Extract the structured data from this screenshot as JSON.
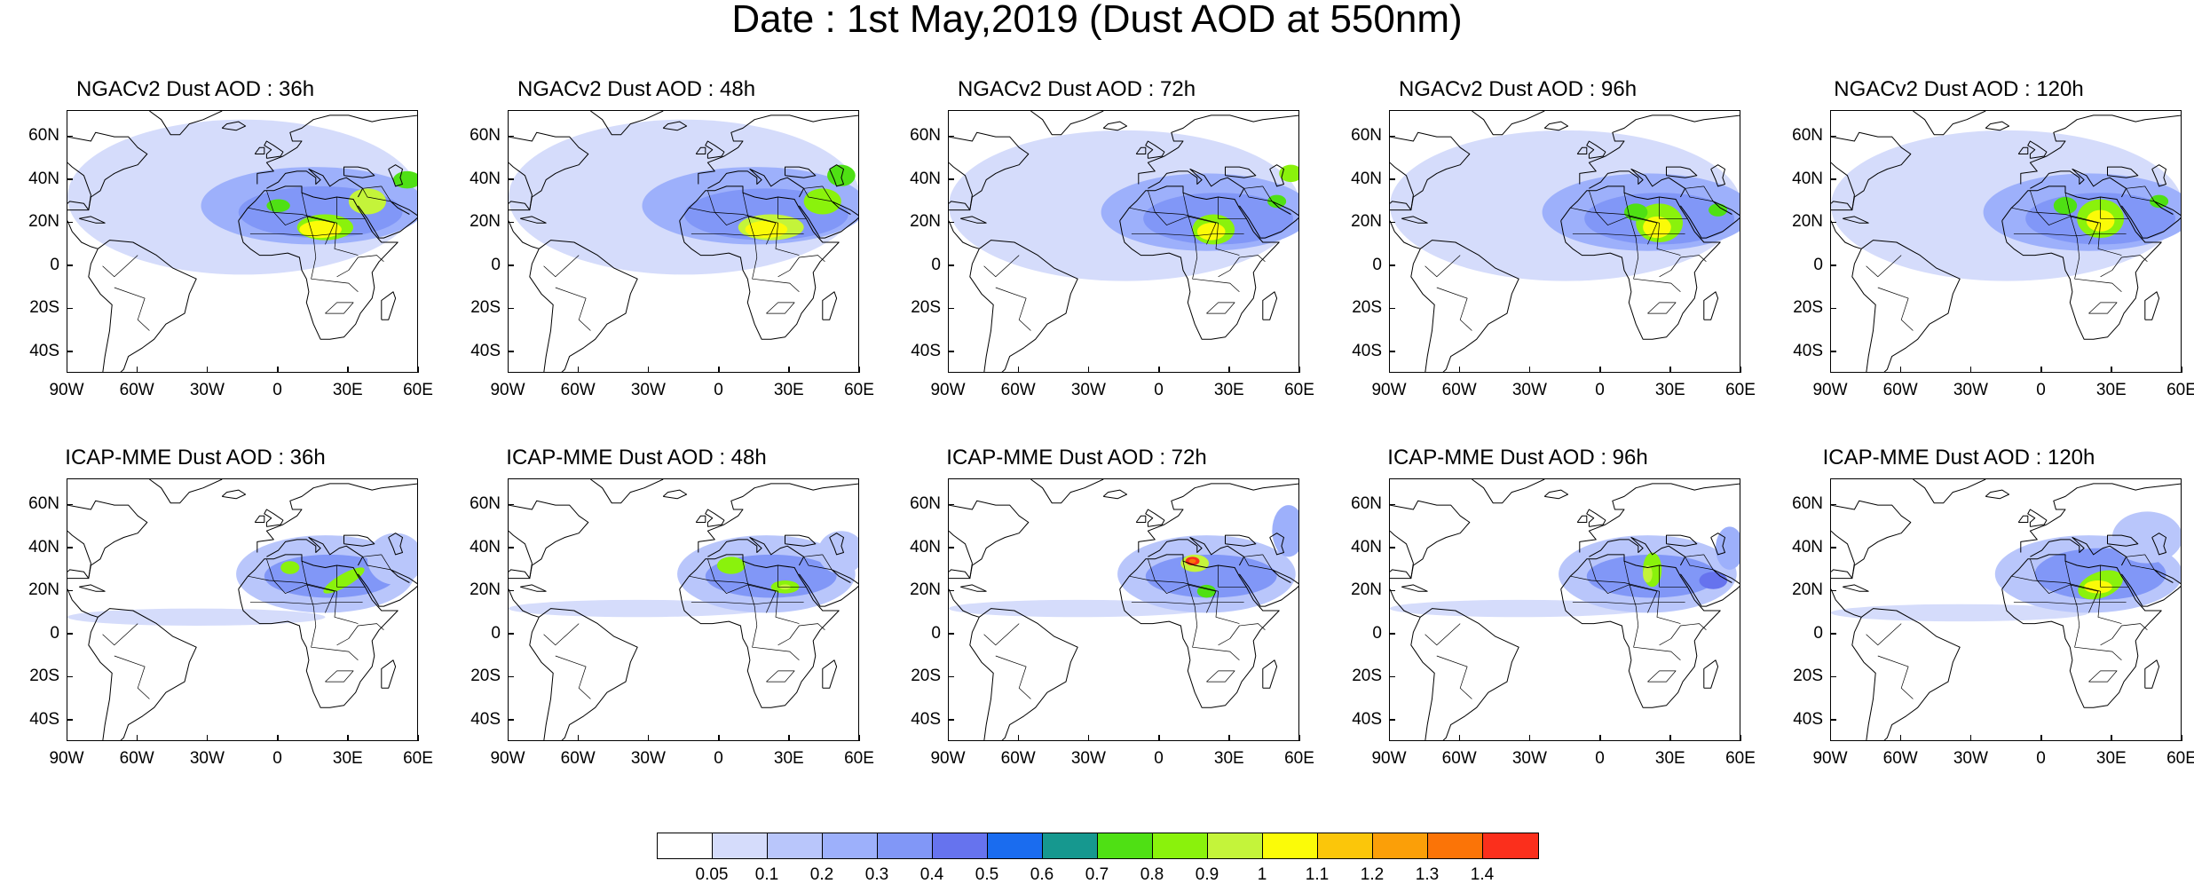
{
  "title": "Date : 1st May,2019 (Dust AOD at 550nm)",
  "panels": [
    {
      "title": "NGACv2 Dust AOD : 36h",
      "model": "NGACv2",
      "lead": "36h",
      "peak_level": 11
    },
    {
      "title": "NGACv2 Dust AOD : 48h",
      "model": "NGACv2",
      "lead": "48h",
      "peak_level": 11
    },
    {
      "title": "NGACv2 Dust AOD : 72h",
      "model": "NGACv2",
      "lead": "72h",
      "peak_level": 11
    },
    {
      "title": "NGACv2 Dust AOD : 96h",
      "model": "NGACv2",
      "lead": "96h",
      "peak_level": 11
    },
    {
      "title": "NGACv2 Dust AOD : 120h",
      "model": "NGACv2",
      "lead": "120h",
      "peak_level": 11
    },
    {
      "title": "ICAP-MME Dust AOD : 36h",
      "model": "ICAP-MME",
      "lead": "36h",
      "peak_level": 9
    },
    {
      "title": "ICAP-MME Dust AOD : 48h",
      "model": "ICAP-MME",
      "lead": "48h",
      "peak_level": 10
    },
    {
      "title": "ICAP-MME Dust AOD : 72h",
      "model": "ICAP-MME",
      "lead": "72h",
      "peak_level": 14
    },
    {
      "title": "ICAP-MME Dust AOD : 96h",
      "model": "ICAP-MME",
      "lead": "96h",
      "peak_level": 10
    },
    {
      "title": "ICAP-MME Dust AOD : 120h",
      "model": "ICAP-MME",
      "lead": "120h",
      "peak_level": 11
    }
  ],
  "lat_labels": [
    "60N",
    "40N",
    "20N",
    "0",
    "20S",
    "40S"
  ],
  "lon_labels": [
    "90W",
    "60W",
    "30W",
    "0",
    "30E",
    "60E"
  ],
  "colorbar": {
    "labels": [
      "0.05",
      "0.1",
      "0.2",
      "0.3",
      "0.4",
      "0.5",
      "0.6",
      "0.7",
      "0.8",
      "0.9",
      "1",
      "1.1",
      "1.2",
      "1.3",
      "1.4"
    ],
    "colors": [
      "#ffffff",
      "#d5dcfb",
      "#b9c6fb",
      "#9db0fb",
      "#8197f7",
      "#6673ee",
      "#1a6cef",
      "#16988f",
      "#4fe014",
      "#8af20c",
      "#c4f43a",
      "#fbfb08",
      "#fbc60a",
      "#fb9f08",
      "#fb7407",
      "#fb2f1c"
    ]
  }
}
